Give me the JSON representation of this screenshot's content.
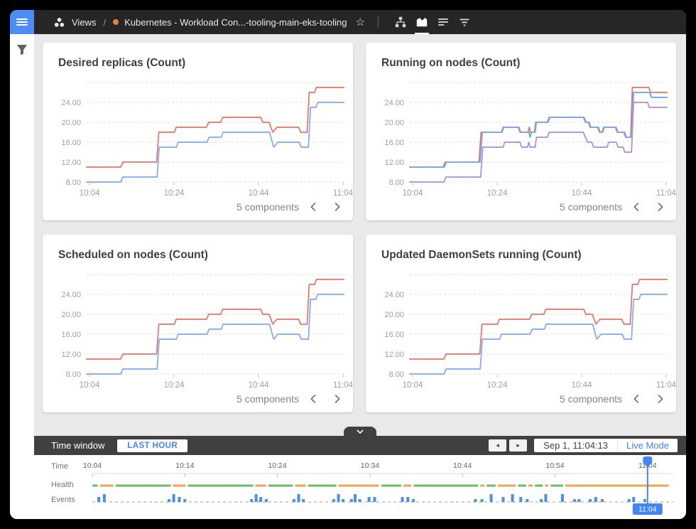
{
  "topbar": {
    "breadcrumb": {
      "section": "Views",
      "separator": "/",
      "title": "Kubernetes - Workload Con...-tooling-main-eks-tooling"
    },
    "status_dot_color": "#E8823C",
    "star_icon": "☆",
    "action_icons": [
      "hierarchy",
      "area-chart",
      "notes",
      "filter-list"
    ],
    "selected_action": "area-chart"
  },
  "sidebar": {
    "filter_icon": "funnel"
  },
  "palette": {
    "red": "#E57368",
    "blue": "#7BAAF7",
    "green": "#57BB8A",
    "purple": "#B188E3",
    "accent_blue": "#4285F4",
    "health_green": "#67BB6A",
    "health_orange": "#F5A04C",
    "events_blue": "#4A90E8"
  },
  "chart_axes": {
    "y_ticks": [
      {
        "v": 8,
        "label": "8.00"
      },
      {
        "v": 12,
        "label": "12.00"
      },
      {
        "v": 16,
        "label": "16.00"
      },
      {
        "v": 20,
        "label": "20.00"
      },
      {
        "v": 24,
        "label": "24.00"
      },
      {
        "v": 28,
        "label": ""
      }
    ],
    "x_ticks": [
      {
        "t": 0,
        "label": "10:04"
      },
      {
        "t": 20,
        "label": "10:24"
      },
      {
        "t": 40,
        "label": "10:44"
      },
      {
        "t": 60,
        "label": "11:04"
      }
    ]
  },
  "cards": [
    {
      "title": "Desired replicas (Count)",
      "components_label": "5 components",
      "series_set": "pair"
    },
    {
      "title": "Running on nodes (Count)",
      "components_label": "5 components",
      "series_set": "multi"
    },
    {
      "title": "Scheduled on nodes (Count)",
      "components_label": "5 components",
      "series_set": "pair"
    },
    {
      "title": "Updated DaemonSets running (Count)",
      "components_label": "5 components",
      "series_set": "pair"
    }
  ],
  "series_sets": {
    "pair": [
      {
        "color": "red",
        "points": [
          [
            -0.7,
            11
          ],
          [
            7.4,
            11
          ],
          [
            7.9,
            12
          ],
          [
            15.9,
            12
          ],
          [
            16.4,
            18
          ],
          [
            20.1,
            18
          ],
          [
            20.5,
            19
          ],
          [
            27.7,
            19
          ],
          [
            28.2,
            20
          ],
          [
            31.1,
            20
          ],
          [
            31.5,
            21
          ],
          [
            40.5,
            21
          ],
          [
            41,
            20
          ],
          [
            42.5,
            20
          ],
          [
            43.4,
            18
          ],
          [
            44.3,
            19
          ],
          [
            49.5,
            19
          ],
          [
            50,
            18
          ],
          [
            51.5,
            18
          ],
          [
            52,
            26
          ],
          [
            53.3,
            26
          ],
          [
            53.7,
            27
          ],
          [
            60.2,
            27
          ]
        ]
      },
      {
        "color": "blue",
        "points": [
          [
            -0.7,
            8
          ],
          [
            7.4,
            8
          ],
          [
            7.9,
            9
          ],
          [
            16,
            9
          ],
          [
            16.5,
            15
          ],
          [
            20.6,
            15
          ],
          [
            21,
            16
          ],
          [
            27.8,
            16
          ],
          [
            28.3,
            17
          ],
          [
            31.2,
            17
          ],
          [
            31.6,
            18
          ],
          [
            42.6,
            18
          ],
          [
            43.6,
            15
          ],
          [
            44.6,
            16
          ],
          [
            49.6,
            16
          ],
          [
            50.1,
            15
          ],
          [
            51.8,
            15
          ],
          [
            52.3,
            23
          ],
          [
            53.6,
            23
          ],
          [
            54,
            24
          ],
          [
            60.2,
            24
          ]
        ]
      }
    ],
    "multi": [
      {
        "color": "green",
        "points": [
          [
            -0.6,
            11
          ],
          [
            7.3,
            11
          ],
          [
            7.8,
            12
          ],
          [
            15.8,
            12
          ],
          [
            16.3,
            18
          ],
          [
            21.1,
            18
          ],
          [
            21.5,
            19
          ],
          [
            25.1,
            19
          ],
          [
            25.5,
            18
          ],
          [
            27.5,
            18
          ],
          [
            27.8,
            17
          ],
          [
            28.1,
            18
          ],
          [
            29,
            18
          ],
          [
            29.3,
            20
          ],
          [
            32,
            20
          ],
          [
            32.4,
            21
          ],
          [
            40.5,
            21
          ],
          [
            41,
            20
          ],
          [
            41.7,
            20
          ],
          [
            42.1,
            19
          ],
          [
            43.9,
            19
          ],
          [
            44.3,
            18
          ],
          [
            44.9,
            18
          ],
          [
            45.3,
            19
          ],
          [
            48.1,
            19
          ],
          [
            48.5,
            18
          ],
          [
            50.1,
            18
          ],
          [
            50.5,
            17
          ],
          [
            51.7,
            17
          ],
          [
            52.1,
            26
          ],
          [
            56.1,
            26
          ],
          [
            56.5,
            25
          ],
          [
            60.2,
            25
          ]
        ]
      },
      {
        "color": "red",
        "points": [
          [
            -0.7,
            11
          ],
          [
            7.2,
            11
          ],
          [
            7.7,
            12
          ],
          [
            15.7,
            12
          ],
          [
            16.2,
            18
          ],
          [
            21,
            18
          ],
          [
            21.4,
            19
          ],
          [
            25,
            19
          ],
          [
            25.4,
            18
          ],
          [
            27.3,
            18
          ],
          [
            27.6,
            19
          ],
          [
            27.9,
            18
          ],
          [
            28.8,
            18
          ],
          [
            29.1,
            20
          ],
          [
            31.9,
            20
          ],
          [
            32.3,
            21
          ],
          [
            40.4,
            21
          ],
          [
            40.9,
            20
          ],
          [
            41.6,
            20
          ],
          [
            42,
            19
          ],
          [
            43.8,
            19
          ],
          [
            44.2,
            18
          ],
          [
            44.8,
            18
          ],
          [
            45.2,
            19
          ],
          [
            48,
            19
          ],
          [
            48.4,
            18
          ],
          [
            50,
            18
          ],
          [
            50.4,
            17
          ],
          [
            51.6,
            17
          ],
          [
            52,
            27
          ],
          [
            55.9,
            27
          ],
          [
            56.3,
            26
          ],
          [
            60.2,
            26
          ]
        ]
      },
      {
        "color": "purple",
        "points": [
          [
            -0.7,
            8
          ],
          [
            7.4,
            8
          ],
          [
            7.9,
            9
          ],
          [
            16.1,
            9
          ],
          [
            16.6,
            15
          ],
          [
            21.4,
            15
          ],
          [
            21.8,
            16
          ],
          [
            25.4,
            16
          ],
          [
            25.8,
            15
          ],
          [
            27.2,
            15
          ],
          [
            27.5,
            16
          ],
          [
            27.8,
            15
          ],
          [
            29,
            15
          ],
          [
            29.3,
            17
          ],
          [
            31.9,
            17
          ],
          [
            32.3,
            18
          ],
          [
            40.4,
            18
          ],
          [
            40.9,
            17
          ],
          [
            41.4,
            16
          ],
          [
            42.4,
            16
          ],
          [
            42.8,
            15
          ],
          [
            46,
            15
          ],
          [
            46.4,
            16
          ],
          [
            48.2,
            16
          ],
          [
            48.6,
            15
          ],
          [
            49.8,
            15
          ],
          [
            50.2,
            14
          ],
          [
            51.8,
            14
          ],
          [
            52.3,
            24
          ],
          [
            55.6,
            24
          ],
          [
            56,
            23
          ],
          [
            60.2,
            23
          ]
        ]
      },
      {
        "color": "blue",
        "points": [
          [
            -0.5,
            11
          ],
          [
            7.5,
            11
          ],
          [
            8,
            12
          ],
          [
            16,
            12
          ],
          [
            16.5,
            18
          ],
          [
            21.2,
            18
          ],
          [
            21.6,
            19
          ],
          [
            25.2,
            19
          ],
          [
            25.6,
            18
          ],
          [
            28.9,
            18
          ],
          [
            29.2,
            20
          ],
          [
            32.1,
            20
          ],
          [
            32.5,
            21
          ],
          [
            40.6,
            21
          ],
          [
            41.1,
            20
          ],
          [
            41.8,
            20
          ],
          [
            42.2,
            19
          ],
          [
            44,
            19
          ],
          [
            44.4,
            18
          ],
          [
            45,
            18
          ],
          [
            45.4,
            19
          ],
          [
            48.2,
            19
          ],
          [
            48.6,
            18
          ],
          [
            50.2,
            18
          ],
          [
            50.6,
            17
          ],
          [
            51.9,
            17
          ],
          [
            52.3,
            26
          ],
          [
            56.2,
            26
          ],
          [
            56.6,
            25
          ],
          [
            60.2,
            25
          ]
        ]
      }
    ]
  },
  "timebar": {
    "label": "Time window",
    "range_button": "LAST HOUR",
    "prev_icon": "◂",
    "next_icon": "▸",
    "datetime": "Sep 1, 11:04:13",
    "live_button": "Live Mode"
  },
  "timeline": {
    "row_labels": {
      "time": "Time",
      "health": "Health",
      "events": "Events"
    },
    "extent_min": 62.5,
    "ticks": [
      {
        "t": 0,
        "label": "10:04"
      },
      {
        "t": 10,
        "label": "10:14"
      },
      {
        "t": 20,
        "label": "10:24"
      },
      {
        "t": 30,
        "label": "10:34"
      },
      {
        "t": 40,
        "label": "10:44"
      },
      {
        "t": 50,
        "label": "10:54"
      },
      {
        "t": 60,
        "label": "11:04"
      }
    ],
    "health_segments": [
      [
        "health_green",
        0,
        0.6
      ],
      [
        "health_orange",
        0.8,
        2.3
      ],
      [
        "health_green",
        2.5,
        8.5
      ],
      [
        "health_orange",
        8.7,
        10.1
      ],
      [
        "health_green",
        10.3,
        17.4
      ],
      [
        "health_orange",
        17.6,
        18.8
      ],
      [
        "health_green",
        19,
        21.7
      ],
      [
        "health_orange",
        21.9,
        23.1
      ],
      [
        "health_green",
        23.3,
        26.4
      ],
      [
        "health_orange",
        26.6,
        31
      ],
      [
        "health_green",
        31.2,
        33.4
      ],
      [
        "health_orange",
        33.6,
        34.5
      ],
      [
        "health_green",
        34.7,
        41.7
      ],
      [
        "health_orange",
        41.9,
        42.4
      ],
      [
        "health_green",
        42.6,
        43.6
      ],
      [
        "health_orange",
        43.8,
        45.8
      ],
      [
        "health_green",
        46,
        46.9
      ],
      [
        "health_orange",
        47.1,
        47.6
      ],
      [
        "health_green",
        47.8,
        48.7
      ],
      [
        "health_orange",
        48.9,
        49.3
      ],
      [
        "health_green",
        49.5,
        50.9
      ],
      [
        "health_orange",
        51.1,
        62.3
      ]
    ],
    "events": [
      [
        0.7,
        2
      ],
      [
        1.3,
        3
      ],
      [
        8.3,
        1
      ],
      [
        8.8,
        3
      ],
      [
        9.4,
        2
      ],
      [
        10,
        1
      ],
      [
        17.2,
        1
      ],
      [
        17.7,
        3
      ],
      [
        18.2,
        2
      ],
      [
        18.8,
        1
      ],
      [
        21.8,
        1
      ],
      [
        22.3,
        3
      ],
      [
        22.8,
        1
      ],
      [
        26.1,
        1
      ],
      [
        26.6,
        3
      ],
      [
        27.1,
        1
      ],
      [
        28,
        1
      ],
      [
        28.4,
        3
      ],
      [
        28.9,
        1
      ],
      [
        29.9,
        2
      ],
      [
        30.5,
        2
      ],
      [
        33.5,
        2
      ],
      [
        34.1,
        2
      ],
      [
        34.7,
        1
      ],
      [
        41.4,
        1
      ],
      [
        42.1,
        1
      ],
      [
        43.1,
        3
      ],
      [
        44.4,
        2
      ],
      [
        45.4,
        3
      ],
      [
        46.3,
        2
      ],
      [
        47,
        1
      ],
      [
        48.5,
        1
      ],
      [
        49,
        3
      ],
      [
        50.8,
        3
      ],
      [
        52.1,
        1
      ],
      [
        52.6,
        1
      ],
      [
        53.8,
        1
      ],
      [
        54.4,
        2
      ],
      [
        55.1,
        1
      ],
      [
        58,
        1
      ],
      [
        58.5,
        2
      ],
      [
        59.7,
        1
      ]
    ],
    "slider": {
      "t": 60,
      "label": "11:04"
    }
  }
}
